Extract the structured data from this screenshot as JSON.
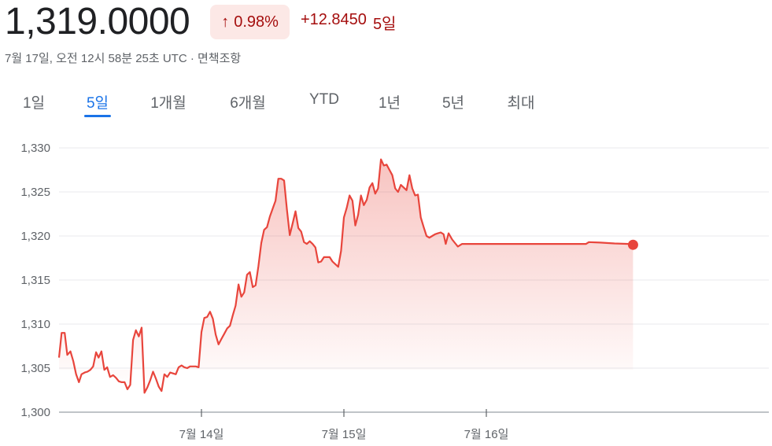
{
  "quote": {
    "price": "1,319.0000",
    "change_pct": "0.98%",
    "change_abs": "+12.8450",
    "period": "5일",
    "timestamp": "7월 17일, 오전 12시 58분 25초 UTC · 면책조항"
  },
  "icons": {
    "up_arrow": "arrow-up-icon"
  },
  "colors": {
    "accent": "#1a73e8",
    "down_red": "#a50e0e",
    "line_red": "#e8453c"
  },
  "tabs": [
    {
      "label": "1일"
    },
    {
      "label": "5일"
    },
    {
      "label": "1개월"
    },
    {
      "label": "6개월"
    },
    {
      "label": "YTD"
    },
    {
      "label": "1년"
    },
    {
      "label": "5년"
    },
    {
      "label": "최대"
    }
  ],
  "active_tab": "5일",
  "chart_data": {
    "type": "area",
    "ylim": [
      1300,
      1330
    ],
    "y_ticks": [
      1300,
      1305,
      1310,
      1315,
      1320,
      1325,
      1330
    ],
    "y_tick_labels": [
      "1,300",
      "1,305",
      "1,310",
      "1,315",
      "1,320",
      "1,325",
      "1,330"
    ],
    "x_ticks": [
      {
        "x": 1.0,
        "label": "7월 14일"
      },
      {
        "x": 2.0,
        "label": "7월 15일"
      },
      {
        "x": 3.0,
        "label": "7월 16일"
      }
    ],
    "xlim": [
      0,
      5.0
    ],
    "grid": true,
    "series": [
      {
        "values": [
          [
            0.0,
            1306.2
          ],
          [
            0.018,
            1309.0
          ],
          [
            0.04,
            1309.0
          ],
          [
            0.058,
            1306.5
          ],
          [
            0.08,
            1306.9
          ],
          [
            0.1,
            1305.8
          ],
          [
            0.12,
            1304.3
          ],
          [
            0.14,
            1303.4
          ],
          [
            0.158,
            1304.3
          ],
          [
            0.18,
            1304.5
          ],
          [
            0.2,
            1304.6
          ],
          [
            0.22,
            1304.8
          ],
          [
            0.24,
            1305.2
          ],
          [
            0.26,
            1306.8
          ],
          [
            0.278,
            1306.2
          ],
          [
            0.298,
            1306.9
          ],
          [
            0.318,
            1304.8
          ],
          [
            0.338,
            1305.1
          ],
          [
            0.358,
            1304.0
          ],
          [
            0.38,
            1304.2
          ],
          [
            0.4,
            1303.9
          ],
          [
            0.42,
            1303.5
          ],
          [
            0.44,
            1303.4
          ],
          [
            0.46,
            1303.4
          ],
          [
            0.48,
            1302.6
          ],
          [
            0.5,
            1303.1
          ],
          [
            0.52,
            1308.2
          ],
          [
            0.54,
            1309.3
          ],
          [
            0.56,
            1308.6
          ],
          [
            0.58,
            1309.6
          ],
          [
            0.6,
            1302.2
          ],
          [
            0.62,
            1302.8
          ],
          [
            0.64,
            1303.6
          ],
          [
            0.66,
            1304.6
          ],
          [
            0.68,
            1303.8
          ],
          [
            0.7,
            1302.9
          ],
          [
            0.72,
            1302.4
          ],
          [
            0.74,
            1304.3
          ],
          [
            0.76,
            1304.0
          ],
          [
            0.78,
            1304.5
          ],
          [
            0.8,
            1304.4
          ],
          [
            0.82,
            1304.3
          ],
          [
            0.84,
            1305.1
          ],
          [
            0.86,
            1305.3
          ],
          [
            0.88,
            1305.1
          ],
          [
            0.9,
            1305.0
          ],
          [
            0.92,
            1305.2
          ],
          [
            0.94,
            1305.2
          ],
          [
            0.96,
            1305.2
          ],
          [
            0.98,
            1305.1
          ],
          [
            1.0,
            1309.1
          ],
          [
            1.02,
            1310.7
          ],
          [
            1.04,
            1310.8
          ],
          [
            1.06,
            1311.4
          ],
          [
            1.08,
            1310.6
          ],
          [
            1.1,
            1308.8
          ],
          [
            1.12,
            1307.7
          ],
          [
            1.14,
            1308.3
          ],
          [
            1.16,
            1308.9
          ],
          [
            1.18,
            1309.5
          ],
          [
            1.2,
            1309.8
          ],
          [
            1.22,
            1311.0
          ],
          [
            1.24,
            1312.1
          ],
          [
            1.26,
            1314.5
          ],
          [
            1.28,
            1313.1
          ],
          [
            1.3,
            1313.6
          ],
          [
            1.32,
            1315.6
          ],
          [
            1.34,
            1315.9
          ],
          [
            1.36,
            1314.2
          ],
          [
            1.38,
            1314.4
          ],
          [
            1.4,
            1316.6
          ],
          [
            1.42,
            1319.2
          ],
          [
            1.44,
            1320.7
          ],
          [
            1.46,
            1321.0
          ],
          [
            1.48,
            1322.2
          ],
          [
            1.5,
            1323.1
          ],
          [
            1.52,
            1324.0
          ],
          [
            1.54,
            1326.5
          ],
          [
            1.56,
            1326.5
          ],
          [
            1.58,
            1326.3
          ],
          [
            1.6,
            1323.0
          ],
          [
            1.62,
            1320.1
          ],
          [
            1.64,
            1321.4
          ],
          [
            1.66,
            1322.8
          ],
          [
            1.68,
            1320.9
          ],
          [
            1.7,
            1320.5
          ],
          [
            1.72,
            1319.3
          ],
          [
            1.74,
            1319.1
          ],
          [
            1.76,
            1319.4
          ],
          [
            1.78,
            1319.1
          ],
          [
            1.8,
            1318.7
          ],
          [
            1.82,
            1317.0
          ],
          [
            1.84,
            1317.1
          ],
          [
            1.86,
            1317.6
          ],
          [
            1.88,
            1317.6
          ],
          [
            1.9,
            1317.6
          ],
          [
            1.92,
            1317.1
          ],
          [
            1.94,
            1316.8
          ],
          [
            1.96,
            1316.5
          ],
          [
            1.98,
            1318.3
          ],
          [
            2.0,
            1322.1
          ],
          [
            2.02,
            1323.2
          ],
          [
            2.04,
            1324.6
          ],
          [
            2.06,
            1324.0
          ],
          [
            2.08,
            1321.2
          ],
          [
            2.1,
            1322.4
          ],
          [
            2.12,
            1324.6
          ],
          [
            2.14,
            1323.5
          ],
          [
            2.16,
            1324.1
          ],
          [
            2.18,
            1325.5
          ],
          [
            2.2,
            1326.0
          ],
          [
            2.22,
            1324.8
          ],
          [
            2.24,
            1325.4
          ],
          [
            2.26,
            1328.7
          ],
          [
            2.28,
            1328.0
          ],
          [
            2.3,
            1328.1
          ],
          [
            2.32,
            1327.5
          ],
          [
            2.34,
            1326.9
          ],
          [
            2.36,
            1325.4
          ],
          [
            2.38,
            1325.0
          ],
          [
            2.4,
            1325.8
          ],
          [
            2.42,
            1325.5
          ],
          [
            2.44,
            1325.2
          ],
          [
            2.46,
            1326.9
          ],
          [
            2.48,
            1325.4
          ],
          [
            2.5,
            1324.6
          ],
          [
            2.52,
            1324.7
          ],
          [
            2.54,
            1322.1
          ],
          [
            2.56,
            1321.0
          ],
          [
            2.58,
            1320.0
          ],
          [
            2.6,
            1319.8
          ],
          [
            2.62,
            1320.0
          ],
          [
            2.64,
            1320.2
          ],
          [
            2.66,
            1320.3
          ],
          [
            2.68,
            1320.4
          ],
          [
            2.7,
            1320.2
          ],
          [
            2.715,
            1319.1
          ],
          [
            2.735,
            1320.3
          ],
          [
            2.76,
            1319.6
          ],
          [
            2.78,
            1319.2
          ],
          [
            2.8,
            1318.8
          ],
          [
            2.83,
            1319.1
          ],
          [
            2.9,
            1319.1
          ],
          [
            3.0,
            1319.1
          ],
          [
            3.2,
            1319.1
          ],
          [
            3.4,
            1319.1
          ],
          [
            3.6,
            1319.1
          ],
          [
            3.7,
            1319.1
          ],
          [
            3.72,
            1319.3
          ],
          [
            3.8,
            1319.25
          ],
          [
            3.9,
            1319.15
          ],
          [
            4.0,
            1319.1
          ],
          [
            4.03,
            1319.0
          ]
        ]
      }
    ]
  }
}
